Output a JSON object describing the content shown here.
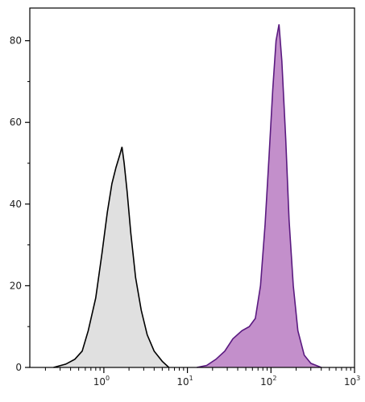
{
  "chart_data": {
    "type": "area",
    "title": "",
    "xlabel": "",
    "ylabel": "",
    "x_scale": "log",
    "xlim": [
      0.13,
      1000
    ],
    "ylim": [
      0,
      88
    ],
    "grid": false,
    "legend": "none",
    "x_ticks": [
      {
        "value": 1,
        "base": "10",
        "exp": "0"
      },
      {
        "value": 10,
        "base": "10",
        "exp": "1"
      },
      {
        "value": 100,
        "base": "10",
        "exp": "2"
      },
      {
        "value": 1000,
        "base": "10",
        "exp": "3"
      }
    ],
    "y_ticks": [
      {
        "value": 0,
        "label": "0"
      },
      {
        "value": 20,
        "label": "20"
      },
      {
        "value": 40,
        "label": "40"
      },
      {
        "value": 60,
        "label": "60"
      },
      {
        "value": 80,
        "label": "80"
      }
    ],
    "series": [
      {
        "fill": "#e0e0e0",
        "stroke": "#000000",
        "x": [
          0.25,
          0.35,
          0.45,
          0.55,
          0.65,
          0.8,
          0.95,
          1.1,
          1.25,
          1.4,
          1.55,
          1.65,
          1.75,
          1.9,
          2.1,
          2.4,
          2.8,
          3.3,
          4.0,
          5.0,
          6.0
        ],
        "y": [
          0,
          0.8,
          2,
          4,
          9,
          17,
          28,
          38,
          45,
          49,
          52,
          54,
          50,
          43,
          33,
          22,
          14,
          8,
          4,
          1.5,
          0
        ]
      },
      {
        "fill": "#c38fcb",
        "stroke": "#5a1a80",
        "x": [
          13,
          17,
          22,
          28,
          35,
          45,
          55,
          65,
          75,
          85,
          95,
          105,
          115,
          125,
          135,
          150,
          165,
          185,
          210,
          250,
          300,
          400
        ],
        "y": [
          0,
          0.5,
          2,
          4,
          7,
          9,
          10,
          12,
          20,
          35,
          52,
          68,
          80,
          84,
          75,
          56,
          36,
          20,
          9,
          3,
          1,
          0
        ]
      }
    ]
  }
}
